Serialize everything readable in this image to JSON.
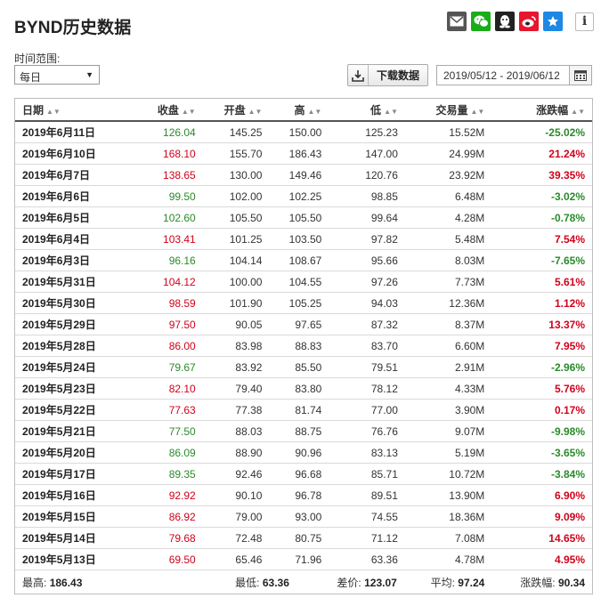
{
  "header": {
    "title": "BYND历史数据"
  },
  "share": [
    {
      "name": "mail-icon",
      "color": "#555555"
    },
    {
      "name": "wechat-icon",
      "color": "#1aad19"
    },
    {
      "name": "qq-icon",
      "color": "#222222"
    },
    {
      "name": "weibo-icon",
      "color": "#e6162d"
    },
    {
      "name": "favorite-star-icon",
      "color": "#1e88e5"
    }
  ],
  "info_label": "i",
  "controls": {
    "range_label": "时间范围:",
    "period_value": "每日",
    "download_label": "下载数据",
    "date_range": "2019/05/12 - 2019/06/12"
  },
  "columns": [
    "日期",
    "收盘",
    "开盘",
    "高",
    "低",
    "交易量",
    "涨跌幅"
  ],
  "colors": {
    "up": "#d0021b",
    "down": "#2a8a2a"
  },
  "rows": [
    {
      "date": "2019年6月11日",
      "close": "126.04",
      "open": "145.25",
      "high": "150.00",
      "low": "125.23",
      "vol": "15.52M",
      "chg": "-25.02%"
    },
    {
      "date": "2019年6月10日",
      "close": "168.10",
      "open": "155.70",
      "high": "186.43",
      "low": "147.00",
      "vol": "24.99M",
      "chg": "21.24%"
    },
    {
      "date": "2019年6月7日",
      "close": "138.65",
      "open": "130.00",
      "high": "149.46",
      "low": "120.76",
      "vol": "23.92M",
      "chg": "39.35%"
    },
    {
      "date": "2019年6月6日",
      "close": "99.50",
      "open": "102.00",
      "high": "102.25",
      "low": "98.85",
      "vol": "6.48M",
      "chg": "-3.02%"
    },
    {
      "date": "2019年6月5日",
      "close": "102.60",
      "open": "105.50",
      "high": "105.50",
      "low": "99.64",
      "vol": "4.28M",
      "chg": "-0.78%"
    },
    {
      "date": "2019年6月4日",
      "close": "103.41",
      "open": "101.25",
      "high": "103.50",
      "low": "97.82",
      "vol": "5.48M",
      "chg": "7.54%"
    },
    {
      "date": "2019年6月3日",
      "close": "96.16",
      "open": "104.14",
      "high": "108.67",
      "low": "95.66",
      "vol": "8.03M",
      "chg": "-7.65%"
    },
    {
      "date": "2019年5月31日",
      "close": "104.12",
      "open": "100.00",
      "high": "104.55",
      "low": "97.26",
      "vol": "7.73M",
      "chg": "5.61%"
    },
    {
      "date": "2019年5月30日",
      "close": "98.59",
      "open": "101.90",
      "high": "105.25",
      "low": "94.03",
      "vol": "12.36M",
      "chg": "1.12%"
    },
    {
      "date": "2019年5月29日",
      "close": "97.50",
      "open": "90.05",
      "high": "97.65",
      "low": "87.32",
      "vol": "8.37M",
      "chg": "13.37%"
    },
    {
      "date": "2019年5月28日",
      "close": "86.00",
      "open": "83.98",
      "high": "88.83",
      "low": "83.70",
      "vol": "6.60M",
      "chg": "7.95%"
    },
    {
      "date": "2019年5月24日",
      "close": "79.67",
      "open": "83.92",
      "high": "85.50",
      "low": "79.51",
      "vol": "2.91M",
      "chg": "-2.96%"
    },
    {
      "date": "2019年5月23日",
      "close": "82.10",
      "open": "79.40",
      "high": "83.80",
      "low": "78.12",
      "vol": "4.33M",
      "chg": "5.76%"
    },
    {
      "date": "2019年5月22日",
      "close": "77.63",
      "open": "77.38",
      "high": "81.74",
      "low": "77.00",
      "vol": "3.90M",
      "chg": "0.17%"
    },
    {
      "date": "2019年5月21日",
      "close": "77.50",
      "open": "88.03",
      "high": "88.75",
      "low": "76.76",
      "vol": "9.07M",
      "chg": "-9.98%"
    },
    {
      "date": "2019年5月20日",
      "close": "86.09",
      "open": "88.90",
      "high": "90.96",
      "low": "83.13",
      "vol": "5.19M",
      "chg": "-3.65%"
    },
    {
      "date": "2019年5月17日",
      "close": "89.35",
      "open": "92.46",
      "high": "96.68",
      "low": "85.71",
      "vol": "10.72M",
      "chg": "-3.84%"
    },
    {
      "date": "2019年5月16日",
      "close": "92.92",
      "open": "90.10",
      "high": "96.78",
      "low": "89.51",
      "vol": "13.90M",
      "chg": "6.90%"
    },
    {
      "date": "2019年5月15日",
      "close": "86.92",
      "open": "79.00",
      "high": "93.00",
      "low": "74.55",
      "vol": "18.36M",
      "chg": "9.09%"
    },
    {
      "date": "2019年5月14日",
      "close": "79.68",
      "open": "72.48",
      "high": "80.75",
      "low": "71.12",
      "vol": "7.08M",
      "chg": "14.65%"
    },
    {
      "date": "2019年5月13日",
      "close": "69.50",
      "open": "65.46",
      "high": "71.96",
      "low": "63.36",
      "vol": "4.78M",
      "chg": "4.95%"
    }
  ],
  "summary": {
    "max_label": "最高:",
    "max": "186.43",
    "min_label": "最低:",
    "min": "63.36",
    "diff_label": "差价:",
    "diff": "123.07",
    "avg_label": "平均:",
    "avg": "97.24",
    "chg_label": "涨跌幅:",
    "chg": "90.34"
  }
}
